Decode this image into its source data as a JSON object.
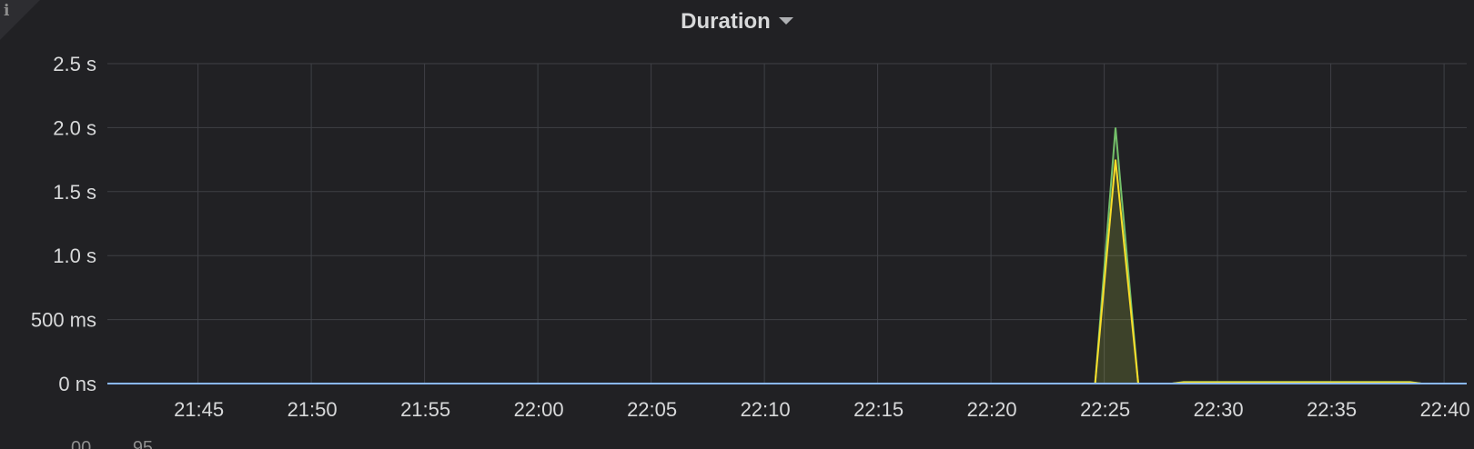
{
  "panel": {
    "title": "Duration",
    "info_icon": "info-icon",
    "legend_peek": [
      "00",
      "95"
    ]
  },
  "chart_data": {
    "type": "area",
    "title": "Duration",
    "xlabel": "",
    "ylabel": "",
    "x_ticks": [
      "21:45",
      "21:50",
      "21:55",
      "22:00",
      "22:05",
      "22:10",
      "22:15",
      "22:20",
      "22:25",
      "22:30",
      "22:35",
      "22:40"
    ],
    "y_ticks": [
      {
        "value": 0,
        "label": "0 ns"
      },
      {
        "value": 0.5,
        "label": "500 ms"
      },
      {
        "value": 1.0,
        "label": "1.0 s"
      },
      {
        "value": 1.5,
        "label": "1.5 s"
      },
      {
        "value": 2.0,
        "label": "2.0 s"
      },
      {
        "value": 2.5,
        "label": "2.5 s"
      }
    ],
    "xlim": [
      "21:41",
      "22:41"
    ],
    "ylim": [
      0,
      2.5
    ],
    "unit": "s",
    "grid": true,
    "series": [
      {
        "color": "#73bf69",
        "points": [
          [
            "21:41",
            0
          ],
          [
            "22:24.6",
            0
          ],
          [
            "22:25.5",
            2.0
          ],
          [
            "22:26.5",
            0
          ],
          [
            "22:28",
            0
          ],
          [
            "22:28.5",
            0.012
          ],
          [
            "22:38.5",
            0.012
          ],
          [
            "22:39",
            0
          ],
          [
            "22:41",
            0
          ]
        ]
      },
      {
        "color": "#fade2a",
        "points": [
          [
            "21:41",
            0
          ],
          [
            "22:24.6",
            0
          ],
          [
            "22:25.5",
            1.75
          ],
          [
            "22:26.5",
            0
          ],
          [
            "22:28",
            0
          ],
          [
            "22:28.5",
            0.01
          ],
          [
            "22:38.5",
            0.01
          ],
          [
            "22:39",
            0
          ],
          [
            "22:41",
            0
          ]
        ]
      },
      {
        "color": "#8ab8ff",
        "points": [
          [
            "21:41",
            0
          ],
          [
            "22:41",
            0
          ]
        ]
      }
    ]
  }
}
